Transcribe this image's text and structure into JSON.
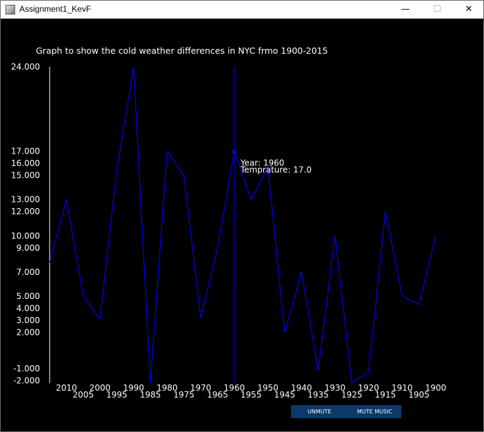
{
  "window": {
    "title": "Assignment1_KevF",
    "minimize_glyph": "—",
    "maximize_glyph": "☐",
    "close_glyph": "✕"
  },
  "buttons": {
    "unmute": "UNMUTE",
    "mute": "MUTE MUSIC"
  },
  "colors": {
    "background": "#000000",
    "line": "#0000ff",
    "axis": "#ffffff",
    "text": "#ffffff",
    "button_bar": "#0a3a6a"
  },
  "chart_data": {
    "type": "line",
    "title": "Graph to show the cold weather differences in NYC frmo 1900-2015",
    "xlabel": "",
    "ylabel": "",
    "x_order": "descending",
    "x": [
      2015,
      2010,
      2005,
      2000,
      1995,
      1990,
      1985,
      1980,
      1975,
      1970,
      1965,
      1960,
      1955,
      1950,
      1945,
      1940,
      1935,
      1930,
      1925,
      1920,
      1915,
      1910,
      1905,
      1900
    ],
    "values": [
      7.8,
      13,
      5,
      3.1,
      15.5,
      24,
      -2.2,
      17,
      15,
      3.2,
      9,
      17,
      13,
      15.7,
      2,
      7,
      -1.2,
      10,
      -2.2,
      -1.3,
      12,
      5,
      4.3,
      10
    ],
    "ytick_labels": [
      "24.000",
      "17.000",
      "16.000",
      "15.000",
      "13.000",
      "12.000",
      "10.000",
      "9.000",
      "7.000",
      "5.000",
      "4.000",
      "3.000",
      "2.000",
      "-1.000",
      "-2.000"
    ],
    "ytick_values": [
      24,
      17,
      16,
      15,
      13,
      12,
      10,
      9,
      7,
      5,
      4,
      3,
      2,
      -1,
      -2
    ],
    "xtick_labels": [
      "2010",
      "2005",
      "2000",
      "1995",
      "1990",
      "1985",
      "1980",
      "1975",
      "1970",
      "1965",
      "1960",
      "1955",
      "1950",
      "1945",
      "1940",
      "1935",
      "1930",
      "1925",
      "1920",
      "1915",
      "1910",
      "1905",
      "1900"
    ],
    "xtick_values": [
      2010,
      2005,
      2000,
      1995,
      1990,
      1985,
      1980,
      1975,
      1970,
      1965,
      1960,
      1955,
      1950,
      1945,
      1940,
      1935,
      1930,
      1925,
      1920,
      1915,
      1910,
      1905,
      1900
    ],
    "ylim": [
      -2.2,
      24
    ],
    "xlim": [
      2015,
      1900
    ],
    "grid": false,
    "highlight": {
      "x": 1960,
      "y": 17,
      "year_label": "Year: 1960",
      "temp_label": "Temprature: 17.0"
    }
  }
}
